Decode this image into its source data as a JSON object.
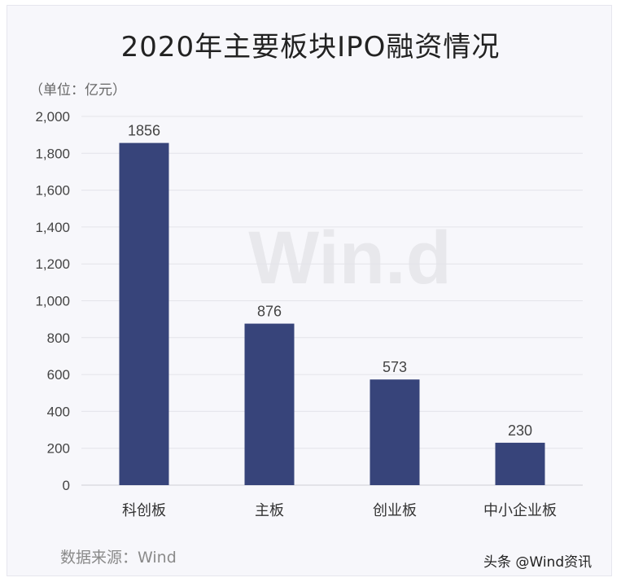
{
  "chart_data": {
    "type": "bar",
    "title": "2020年主要板块IPO融资情况",
    "unit_label": "（单位：亿元）",
    "categories": [
      "科创板",
      "主板",
      "创业板",
      "中小企业板"
    ],
    "values": [
      1856,
      876,
      573,
      230
    ],
    "ylim": [
      0,
      2000
    ],
    "yticks": [
      "0",
      "200",
      "400",
      "600",
      "800",
      "1,000",
      "1,200",
      "1,400",
      "1,600",
      "1,800",
      "2,000"
    ],
    "ytick_values": [
      0,
      200,
      400,
      600,
      800,
      1000,
      1200,
      1400,
      1600,
      1800,
      2000
    ],
    "grid": true,
    "bar_color": "#37447a",
    "watermark": "Win.d",
    "source": "数据来源：Wind",
    "credit": "头条 @Wind资讯"
  }
}
